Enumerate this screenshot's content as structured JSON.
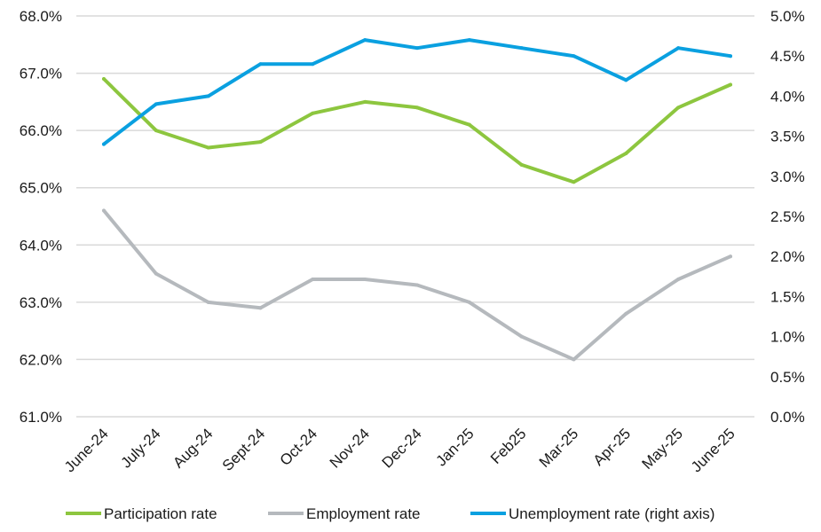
{
  "chart_data": {
    "type": "line",
    "categories": [
      "June-24",
      "July-24",
      "Aug-24",
      "Sept-24",
      "Oct-24",
      "Nov-24",
      "Dec-24",
      "Jan-25",
      "Feb25",
      "Mar-25",
      "Apr-25",
      "May-25",
      "June-25"
    ],
    "series": [
      {
        "name": "Participation rate",
        "axis": "left",
        "color": "#8DC63F",
        "values": [
          66.9,
          66.0,
          65.7,
          65.8,
          66.3,
          66.5,
          66.4,
          66.1,
          65.4,
          65.1,
          65.6,
          66.4,
          66.8
        ]
      },
      {
        "name": "Employment rate",
        "axis": "left",
        "color": "#B5B9BD",
        "values": [
          64.6,
          63.5,
          63.0,
          62.9,
          63.4,
          63.4,
          63.3,
          63.0,
          62.4,
          62.0,
          62.8,
          63.4,
          63.8
        ]
      },
      {
        "name": "Unemployment rate (right axis)",
        "axis": "right",
        "color": "#0AA0E0",
        "values": [
          3.4,
          3.9,
          4.0,
          4.4,
          4.4,
          4.7,
          4.6,
          4.7,
          4.6,
          4.5,
          4.2,
          4.6,
          4.5
        ]
      }
    ],
    "left_axis": {
      "ylim": [
        61.0,
        68.0
      ],
      "ticks": [
        "61.0%",
        "62.0%",
        "63.0%",
        "64.0%",
        "65.0%",
        "66.0%",
        "67.0%",
        "68.0%"
      ]
    },
    "right_axis": {
      "ylim": [
        0.0,
        5.0
      ],
      "ticks": [
        "0.0%",
        "0.5%",
        "1.0%",
        "1.5%",
        "2.0%",
        "2.5%",
        "3.0%",
        "3.5%",
        "4.0%",
        "4.5%",
        "5.0%"
      ]
    },
    "grid": "horizontal",
    "legend": "bottom"
  }
}
